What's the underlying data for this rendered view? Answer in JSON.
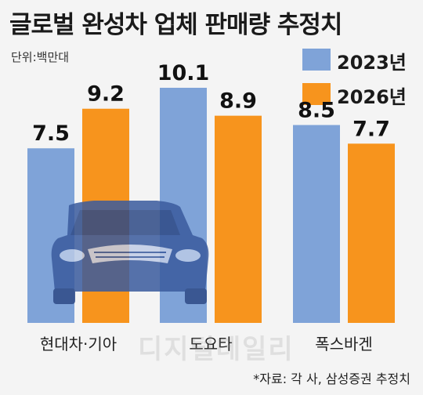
{
  "header": {
    "title": "글로벌 완성차 업체 판매량 추정치",
    "unit": "단위:백만대"
  },
  "footer": {
    "source": "*자료: 각 사, 삼성증권 추정치"
  },
  "watermark": "디지털데일리",
  "colors": {
    "series_2023": "#7fa3d8",
    "series_2026": "#f7941d",
    "car_illustration": "#3a5b9e"
  },
  "chart_data": {
    "type": "bar",
    "title": "글로벌 완성차 업체 판매량 추정치",
    "unit": "단위:백만대",
    "categories": [
      "현대차·기아",
      "도요타",
      "폭스바겐"
    ],
    "series": [
      {
        "name": "2023년",
        "values": [
          7.5,
          10.1,
          8.5
        ]
      },
      {
        "name": "2026년",
        "values": [
          9.2,
          8.9,
          7.7
        ]
      }
    ],
    "ylim": [
      0,
      10.1
    ],
    "grid": false,
    "legend": "top-right"
  }
}
